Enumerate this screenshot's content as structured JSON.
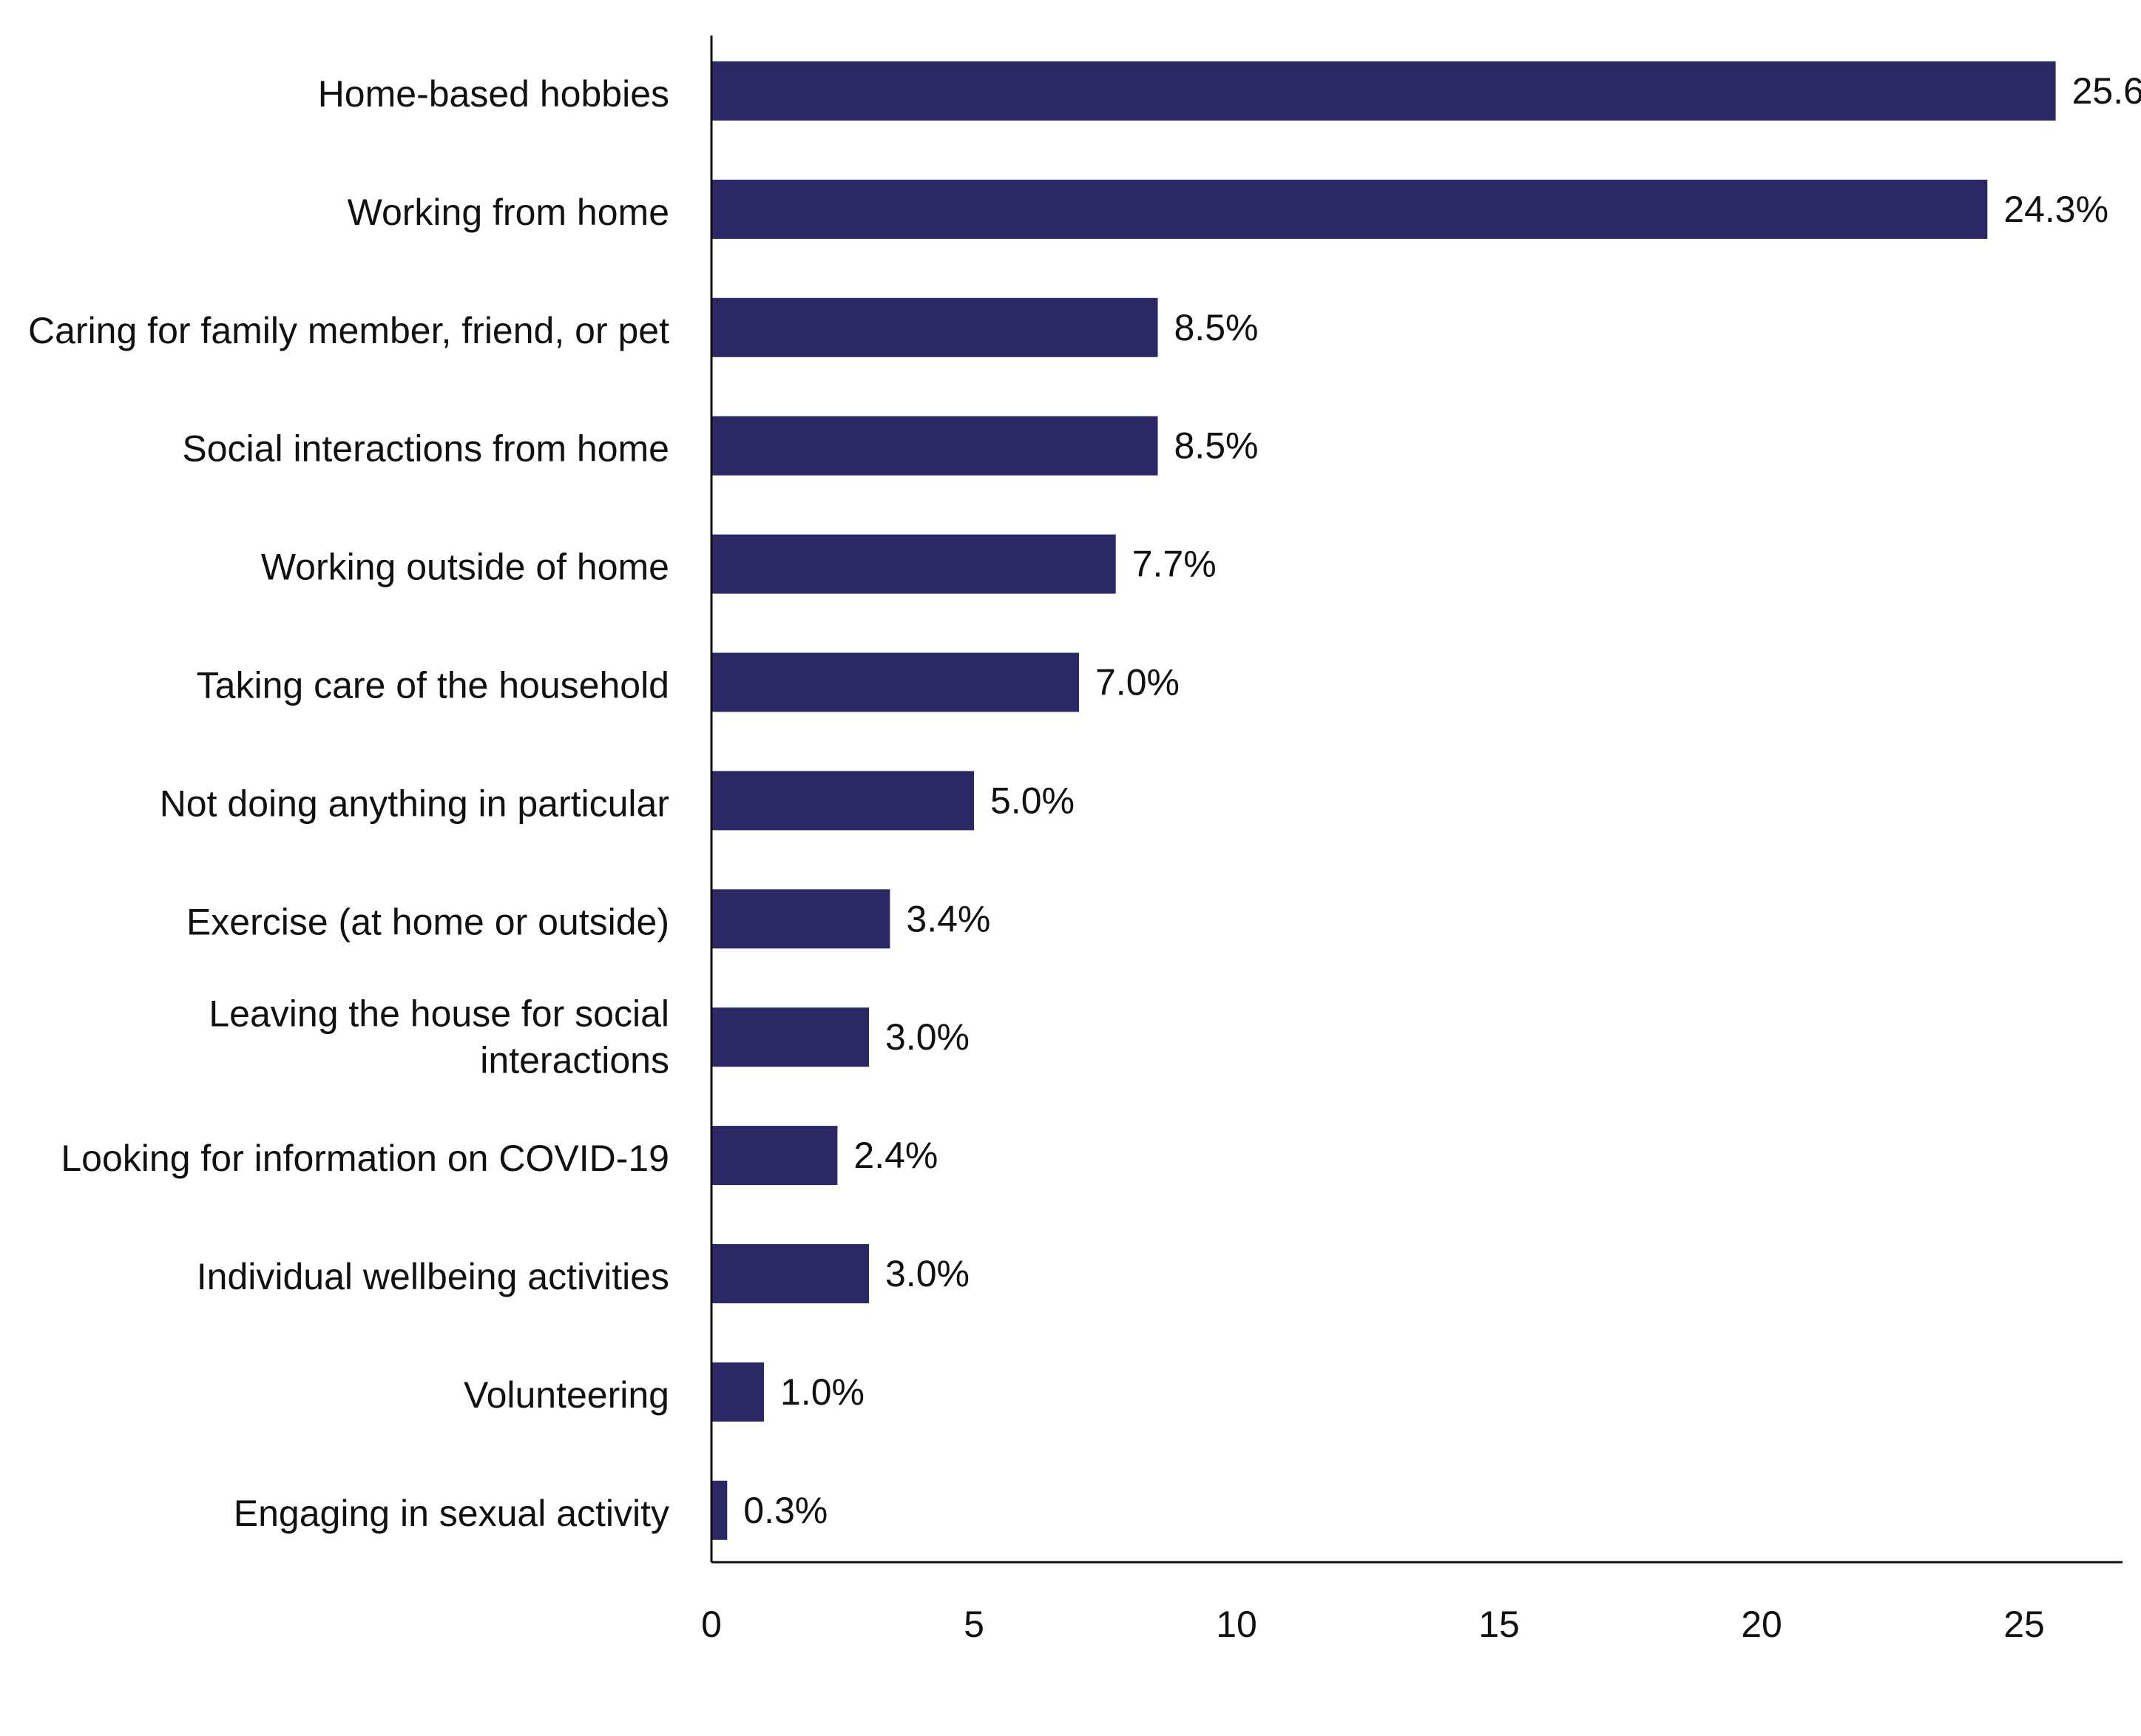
{
  "chart_data": {
    "type": "bar",
    "orientation": "horizontal",
    "categories": [
      "Home-based hobbies",
      "Working from home",
      "Caring for family member, friend, or pet",
      "Social interactions from home",
      "Working outside of home",
      "Taking care of the household",
      "Not doing anything in particular",
      "Exercise (at home or outside)",
      "Leaving the house for social interactions",
      "Looking for information on COVID-19",
      "Individual wellbeing activities",
      "Volunteering",
      "Engaging in sexual activity"
    ],
    "values": [
      25.6,
      24.3,
      8.5,
      8.5,
      7.7,
      7.0,
      5.0,
      3.4,
      3.0,
      2.4,
      3.0,
      1.0,
      0.3
    ],
    "value_labels": [
      "25.6",
      "24.3%",
      "8.5%",
      "8.5%",
      "7.7%",
      "7.0%",
      "5.0%",
      "3.4%",
      "3.0%",
      "2.4%",
      "3.0%",
      "1.0%",
      "0.3%"
    ],
    "x_ticks": [
      "0",
      "5",
      "10",
      "15",
      "20",
      "25"
    ],
    "xlim": [
      0,
      26.9
    ],
    "title": "",
    "xlabel": "",
    "ylabel": "",
    "grid": false,
    "legend": "none",
    "bar_color": "#2b2866",
    "axis_color": "#111111"
  }
}
